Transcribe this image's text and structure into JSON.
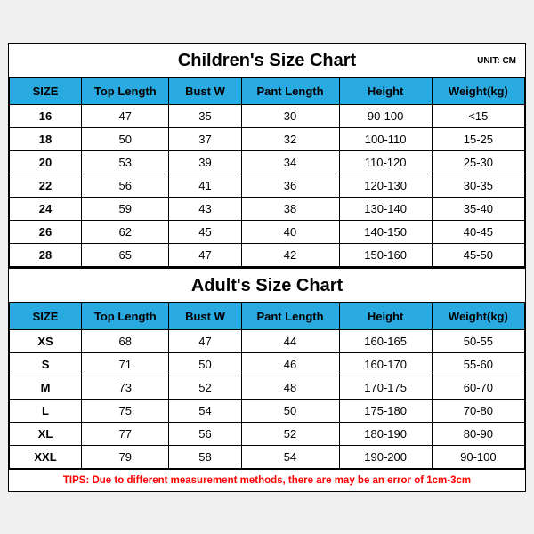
{
  "children": {
    "title": "Children's Size Chart",
    "unit": "UNIT: CM",
    "header_bg": "#29abe2",
    "columns": [
      "SIZE",
      "Top Length",
      "Bust W",
      "Pant Length",
      "Height",
      "Weight(kg)"
    ],
    "col_widths": [
      "14%",
      "17%",
      "14%",
      "19%",
      "18%",
      "18%"
    ],
    "rows": [
      [
        "16",
        "47",
        "35",
        "30",
        "90-100",
        "<15"
      ],
      [
        "18",
        "50",
        "37",
        "32",
        "100-110",
        "15-25"
      ],
      [
        "20",
        "53",
        "39",
        "34",
        "110-120",
        "25-30"
      ],
      [
        "22",
        "56",
        "41",
        "36",
        "120-130",
        "30-35"
      ],
      [
        "24",
        "59",
        "43",
        "38",
        "130-140",
        "35-40"
      ],
      [
        "26",
        "62",
        "45",
        "40",
        "140-150",
        "40-45"
      ],
      [
        "28",
        "65",
        "47",
        "42",
        "150-160",
        "45-50"
      ]
    ]
  },
  "adult": {
    "title": "Adult's Size Chart",
    "header_bg": "#29abe2",
    "columns": [
      "SIZE",
      "Top Length",
      "Bust W",
      "Pant Length",
      "Height",
      "Weight(kg)"
    ],
    "col_widths": [
      "14%",
      "17%",
      "14%",
      "19%",
      "18%",
      "18%"
    ],
    "rows": [
      [
        "XS",
        "68",
        "47",
        "44",
        "160-165",
        "50-55"
      ],
      [
        "S",
        "71",
        "50",
        "46",
        "160-170",
        "55-60"
      ],
      [
        "M",
        "73",
        "52",
        "48",
        "170-175",
        "60-70"
      ],
      [
        "L",
        "75",
        "54",
        "50",
        "175-180",
        "70-80"
      ],
      [
        "XL",
        "77",
        "56",
        "52",
        "180-190",
        "80-90"
      ],
      [
        "XXL",
        "79",
        "58",
        "54",
        "190-200",
        "90-100"
      ]
    ]
  },
  "tips": "TIPS: Due to different measurement methods, there are may be an error of 1cm-3cm"
}
